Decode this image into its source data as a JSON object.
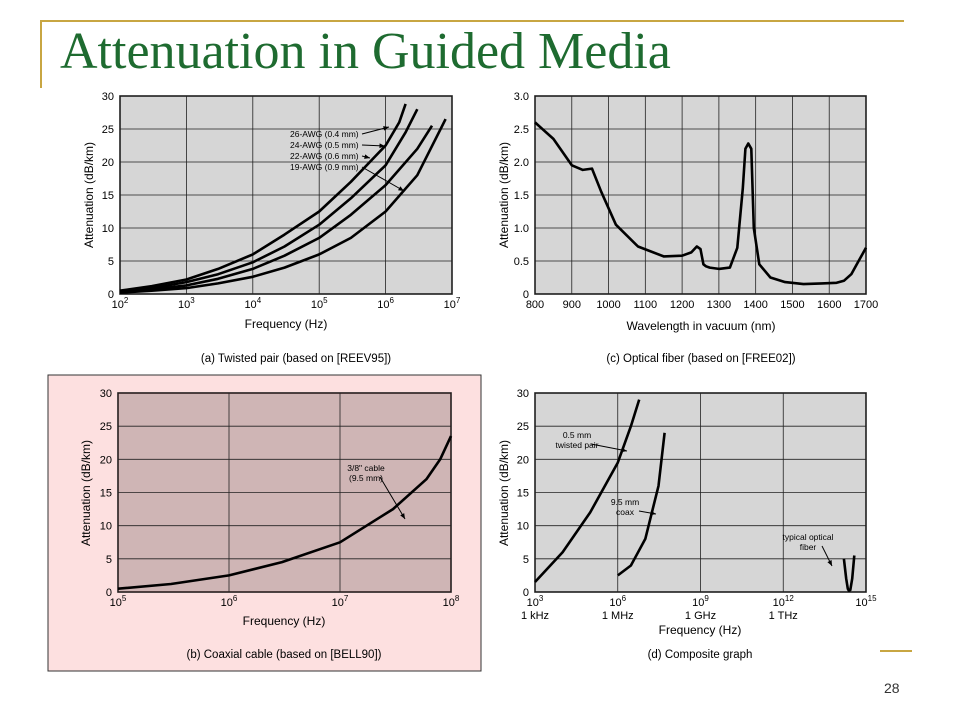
{
  "slide": {
    "title": "Attenuation in Guided Media",
    "page_number": "28",
    "colors": {
      "title": "#1e6b30",
      "accent": "#c8a642",
      "highlight": "#fde0e0",
      "plot_bg": "#d6d6d6"
    }
  },
  "chart_data": [
    {
      "type": "line",
      "caption": "(a) Twisted pair (based on [REEV95])",
      "xlabel": "Frequency (Hz)",
      "ylabel": "Attenuation (dB/km)",
      "xscale": "log",
      "xlim": [
        100,
        10000000
      ],
      "ylim": [
        0,
        30
      ],
      "grid": true,
      "x_ticks": [
        {
          "v": 100,
          "b": "10",
          "e": "2"
        },
        {
          "v": 1000,
          "b": "10",
          "e": "3"
        },
        {
          "v": 10000,
          "b": "10",
          "e": "4"
        },
        {
          "v": 100000,
          "b": "10",
          "e": "5"
        },
        {
          "v": 1000000,
          "b": "10",
          "e": "6"
        },
        {
          "v": 10000000,
          "b": "10",
          "e": "7"
        }
      ],
      "y_ticks": [
        {
          "v": 0,
          "t": "0"
        },
        {
          "v": 5,
          "t": "5"
        },
        {
          "v": 10,
          "t": "10"
        },
        {
          "v": 15,
          "t": "15"
        },
        {
          "v": 20,
          "t": "20"
        },
        {
          "v": 25,
          "t": "25"
        },
        {
          "v": 30,
          "t": "30"
        }
      ],
      "series": [
        {
          "name": "26-AWG (0.4 mm)",
          "x": [
            100,
            300,
            1000,
            3000,
            10000,
            30000,
            100000,
            300000,
            1000000,
            1600000,
            2000000
          ],
          "y": [
            0.5,
            1.2,
            2.2,
            3.8,
            6.0,
            9.0,
            12.5,
            17.0,
            22.5,
            26.0,
            28.8
          ]
        },
        {
          "name": "24-AWG (0.5 mm)",
          "x": [
            100,
            300,
            1000,
            3000,
            10000,
            30000,
            100000,
            300000,
            1000000,
            2000000,
            3000000
          ],
          "y": [
            0.4,
            0.9,
            1.8,
            3.0,
            4.8,
            7.2,
            10.5,
            14.5,
            19.5,
            24.5,
            28.0
          ]
        },
        {
          "name": "22-AWG (0.6 mm)",
          "x": [
            100,
            300,
            1000,
            3000,
            10000,
            30000,
            100000,
            300000,
            1000000,
            3000000,
            5000000
          ],
          "y": [
            0.3,
            0.7,
            1.3,
            2.3,
            3.8,
            5.8,
            8.5,
            12.0,
            16.5,
            22.0,
            25.5
          ]
        },
        {
          "name": "19-AWG (0.9 mm)",
          "x": [
            100,
            300,
            1000,
            3000,
            10000,
            30000,
            100000,
            300000,
            1000000,
            3000000,
            8000000
          ],
          "y": [
            0.2,
            0.5,
            0.9,
            1.6,
            2.6,
            4.0,
            6.0,
            8.5,
            12.5,
            18.0,
            26.5
          ]
        }
      ],
      "annotations": [
        {
          "text": "26-AWG (0.4 mm)",
          "series_index": 0
        },
        {
          "text": "24-AWG (0.5 mm)",
          "series_index": 1
        },
        {
          "text": "22-AWG (0.6 mm)",
          "series_index": 2
        },
        {
          "text": "19-AWG (0.9 mm)",
          "series_index": 3
        }
      ]
    },
    {
      "type": "line",
      "caption": "(c) Optical fiber (based on [FREE02])",
      "xlabel": "Wavelength in vacuum (nm)",
      "ylabel": "Attenuation (dB/km)",
      "xscale": "linear",
      "xlim": [
        800,
        1700
      ],
      "ylim": [
        0,
        3.0
      ],
      "grid": true,
      "x_ticks": [
        {
          "v": 800,
          "t": "800"
        },
        {
          "v": 900,
          "t": "900"
        },
        {
          "v": 1000,
          "t": "1000"
        },
        {
          "v": 1100,
          "t": "1100"
        },
        {
          "v": 1200,
          "t": "1200"
        },
        {
          "v": 1300,
          "t": "1300"
        },
        {
          "v": 1400,
          "t": "1400"
        },
        {
          "v": 1500,
          "t": "1500"
        },
        {
          "v": 1600,
          "t": "1600"
        },
        {
          "v": 1700,
          "t": "1700"
        }
      ],
      "y_ticks": [
        {
          "v": 0,
          "t": "0"
        },
        {
          "v": 0.5,
          "t": "0.5"
        },
        {
          "v": 1.0,
          "t": "1.0"
        },
        {
          "v": 1.5,
          "t": "1.5"
        },
        {
          "v": 2.0,
          "t": "2.0"
        },
        {
          "v": 2.5,
          "t": "2.5"
        },
        {
          "v": 3.0,
          "t": "3.0"
        }
      ],
      "series": [
        {
          "x": [
            800,
            850,
            900,
            930,
            955,
            980,
            1020,
            1080,
            1150,
            1200,
            1225,
            1240,
            1250,
            1258,
            1265,
            1275,
            1300,
            1330,
            1350,
            1365,
            1372,
            1380,
            1388,
            1395,
            1410,
            1440,
            1480,
            1530,
            1580,
            1620,
            1640,
            1660,
            1680,
            1700
          ],
          "y": [
            2.6,
            2.35,
            1.95,
            1.88,
            1.9,
            1.55,
            1.05,
            0.72,
            0.57,
            0.58,
            0.63,
            0.72,
            0.68,
            0.45,
            0.42,
            0.4,
            0.38,
            0.4,
            0.7,
            1.6,
            2.2,
            2.28,
            2.2,
            1.0,
            0.45,
            0.25,
            0.18,
            0.15,
            0.16,
            0.17,
            0.2,
            0.3,
            0.5,
            0.7
          ]
        }
      ],
      "annotations": []
    },
    {
      "type": "line",
      "caption": "(b) Coaxial cable (based on [BELL90])",
      "xlabel": "Frequency (Hz)",
      "ylabel": "Attenuation (dB/km)",
      "xscale": "log",
      "xlim": [
        100000,
        100000000
      ],
      "ylim": [
        0,
        30
      ],
      "grid": true,
      "x_ticks": [
        {
          "v": 100000,
          "b": "10",
          "e": "5"
        },
        {
          "v": 1000000,
          "b": "10",
          "e": "6"
        },
        {
          "v": 10000000,
          "b": "10",
          "e": "7"
        },
        {
          "v": 100000000,
          "b": "10",
          "e": "8"
        }
      ],
      "y_ticks": [
        {
          "v": 0,
          "t": "0"
        },
        {
          "v": 5,
          "t": "5"
        },
        {
          "v": 10,
          "t": "10"
        },
        {
          "v": 15,
          "t": "15"
        },
        {
          "v": 20,
          "t": "20"
        },
        {
          "v": 25,
          "t": "25"
        },
        {
          "v": 30,
          "t": "30"
        }
      ],
      "series": [
        {
          "name": "3/8\" cable (9.5 mm)",
          "x": [
            100000,
            300000,
            1000000,
            3000000,
            10000000,
            30000000,
            60000000,
            80000000,
            100000000
          ],
          "y": [
            0.5,
            1.2,
            2.5,
            4.5,
            7.5,
            12.5,
            17.0,
            20.0,
            23.5
          ]
        }
      ],
      "annotations": [
        {
          "lines": [
            "3/8\" cable",
            "(9.5 mm)"
          ],
          "series_index": 0
        }
      ]
    },
    {
      "type": "line",
      "caption": "(d) Composite graph",
      "xlabel": "Frequency (Hz)",
      "ylabel": "Attenuation (dB/km)",
      "xscale": "log",
      "xlim": [
        1000,
        1000000000000000
      ],
      "ylim": [
        0,
        30
      ],
      "grid": true,
      "x_ticks": [
        {
          "v": 1000,
          "b": "10",
          "e": "3",
          "sub": "1 kHz"
        },
        {
          "v": 1000000,
          "b": "10",
          "e": "6",
          "sub": "1 MHz"
        },
        {
          "v": 1000000000,
          "b": "10",
          "e": "9",
          "sub": "1 GHz"
        },
        {
          "v": 1000000000000,
          "b": "10",
          "e": "12",
          "sub": "1 THz"
        },
        {
          "v": 1000000000000000,
          "b": "10",
          "e": "15"
        }
      ],
      "y_ticks": [
        {
          "v": 0,
          "t": "0"
        },
        {
          "v": 5,
          "t": "5"
        },
        {
          "v": 10,
          "t": "10"
        },
        {
          "v": 15,
          "t": "15"
        },
        {
          "v": 20,
          "t": "20"
        },
        {
          "v": 25,
          "t": "25"
        },
        {
          "v": 30,
          "t": "30"
        }
      ],
      "series": [
        {
          "name": "0.5 mm twisted pair",
          "x": [
            1000,
            10000,
            100000,
            1000000,
            3000000,
            6000000
          ],
          "y": [
            1.5,
            6.0,
            12.0,
            19.5,
            25.0,
            29.0
          ]
        },
        {
          "name": "9.5 mm coax",
          "x": [
            1000000,
            3000000,
            10000000,
            30000000,
            50000000
          ],
          "y": [
            2.5,
            4.0,
            8.0,
            16.0,
            24.0
          ]
        },
        {
          "name": "typical optical fiber",
          "x": [
            158000000000000,
            192000000000000,
            218000000000000,
            240000000000000,
            270000000000000,
            315000000000000,
            375000000000000
          ],
          "y": [
            5.0,
            2.0,
            0.5,
            0.2,
            0.3,
            2.0,
            5.5
          ]
        }
      ],
      "annotations": [
        {
          "lines": [
            "0.5 mm",
            "twisted pair"
          ],
          "series_index": 0
        },
        {
          "lines": [
            "9.5 mm",
            "coax"
          ],
          "series_index": 1
        },
        {
          "lines": [
            "typical optical",
            "fiber"
          ],
          "series_index": 2
        }
      ]
    }
  ]
}
